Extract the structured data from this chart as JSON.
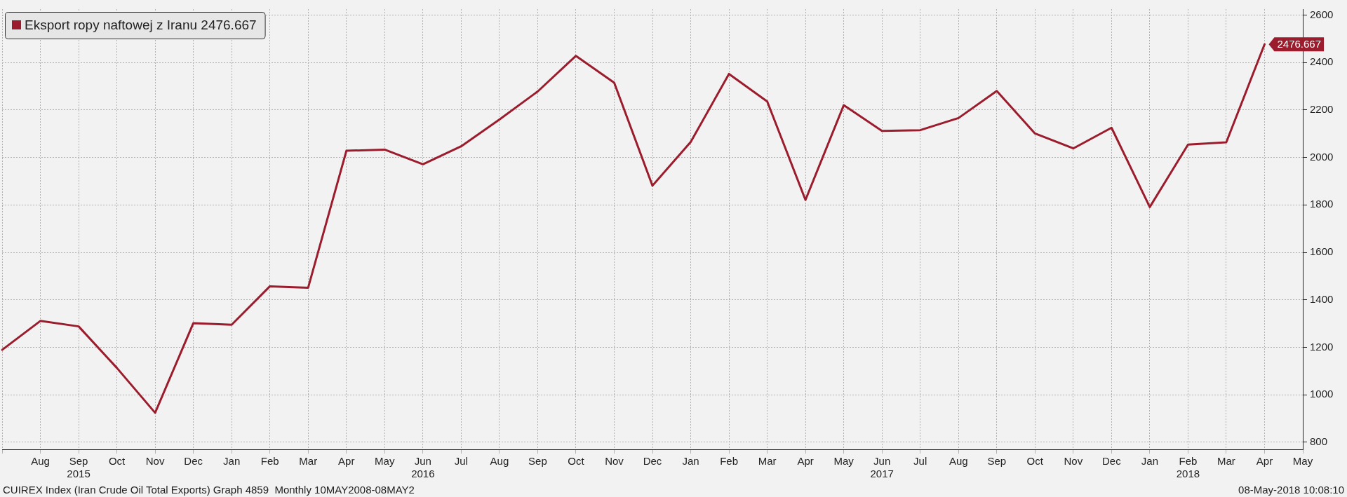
{
  "chart_data": {
    "type": "line",
    "categories": [
      null,
      "Aug",
      [
        "Sep",
        "2015"
      ],
      "Oct",
      "Nov",
      "Dec",
      "Jan",
      "Feb",
      "Mar",
      "Apr",
      "May",
      [
        "Jun",
        "2016"
      ],
      "Jul",
      "Aug",
      "Sep",
      "Oct",
      "Nov",
      "Dec",
      "Jan",
      "Feb",
      "Mar",
      "Apr",
      "May",
      [
        "Jun",
        "2017"
      ],
      "Jul",
      "Aug",
      "Sep",
      "Oct",
      "Nov",
      "Dec",
      "Jan",
      [
        "Feb",
        "2018"
      ],
      "Mar",
      "Apr",
      "May"
    ],
    "series": [
      {
        "name": "Eksport ropy naftowej z Iranu 2476.667",
        "color": "#9b1c2c",
        "values": [
          1189,
          1311,
          1288,
          1113,
          924,
          1302,
          1295,
          1457,
          1451,
          2028,
          2033,
          1971,
          2047,
          2160,
          2278,
          2428,
          2315,
          1881,
          2065,
          2352,
          2236,
          1821,
          2220,
          2112,
          2115,
          2166,
          2280,
          2101,
          2038,
          2125,
          1791,
          2054,
          2064,
          2476.667,
          null
        ],
        "value_labels": [
          null,
          null,
          null,
          null,
          null,
          null,
          null,
          null,
          null,
          null,
          null,
          null,
          null,
          null,
          null,
          null,
          null,
          null,
          null,
          null,
          null,
          null,
          null,
          null,
          null,
          null,
          null,
          null,
          null,
          null,
          null,
          null,
          null,
          "2476.667",
          null
        ]
      }
    ],
    "ylim": [
      770,
      2625
    ],
    "yticks": [
      800,
      1000,
      1200,
      1400,
      1600,
      1800,
      2000,
      2200,
      2400,
      2600
    ],
    "grid": true,
    "legend": "top left",
    "marker": "none",
    "line_style": "solid",
    "annotations": [
      "CUIREX Index (Iran Crude Oil Total Exports) Graph 4859  Monthly 10MAY2008-08MAY2",
      "08-May-2018 10:08:10"
    ]
  }
}
